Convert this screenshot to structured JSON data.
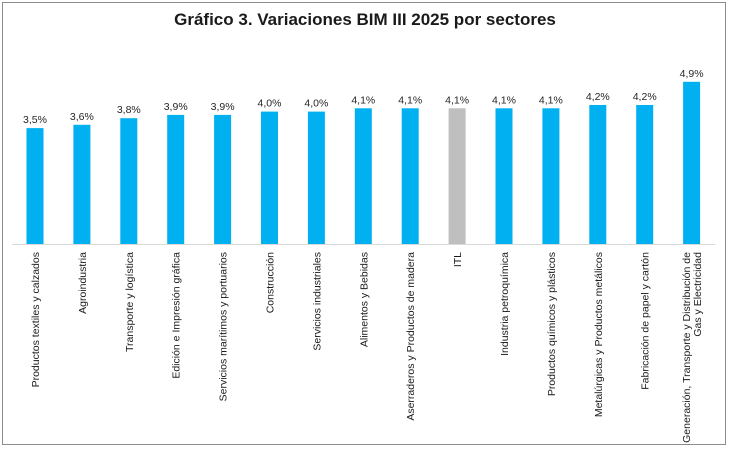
{
  "chart_data": {
    "type": "bar",
    "title": "Gráfico 3. Variaciones BIM III 2025 por sectores",
    "xlabel": "",
    "ylabel": "",
    "ylim": [
      0,
      5.0
    ],
    "grid": false,
    "legend": "none",
    "categories": [
      "Productos textiles y calzados",
      "Agroindustria",
      "Transporte y logística",
      "Edición e Impresión gráfica",
      "Servicios marítimos y portuarios",
      "Construcción",
      "Servicios industriales",
      "Alimentos y Bebidas",
      "Aserraderos y Productos de madera",
      "ITL",
      "Industria petroquímica",
      "Productos químicos y plásticos",
      "Metalúrgicas y Productos metálicos",
      "Fabricación de papel y cartón",
      "Generación, Transporte y Distribución de Gas y Electricidad"
    ],
    "values": [
      3.5,
      3.6,
      3.8,
      3.9,
      3.9,
      4.0,
      4.0,
      4.1,
      4.1,
      4.1,
      4.1,
      4.1,
      4.2,
      4.2,
      4.9
    ],
    "data_labels": [
      "3,5%",
      "3,6%",
      "3,8%",
      "3,9%",
      "3,9%",
      "4,0%",
      "4,0%",
      "4,1%",
      "4,1%",
      "4,1%",
      "4,1%",
      "4,1%",
      "4,2%",
      "4,2%",
      "4,9%"
    ],
    "colors": {
      "bar": "#00b0f0",
      "highlight": "#bfbfbf",
      "highlight_category": "ITL",
      "axis": "#d9d9d9"
    }
  }
}
